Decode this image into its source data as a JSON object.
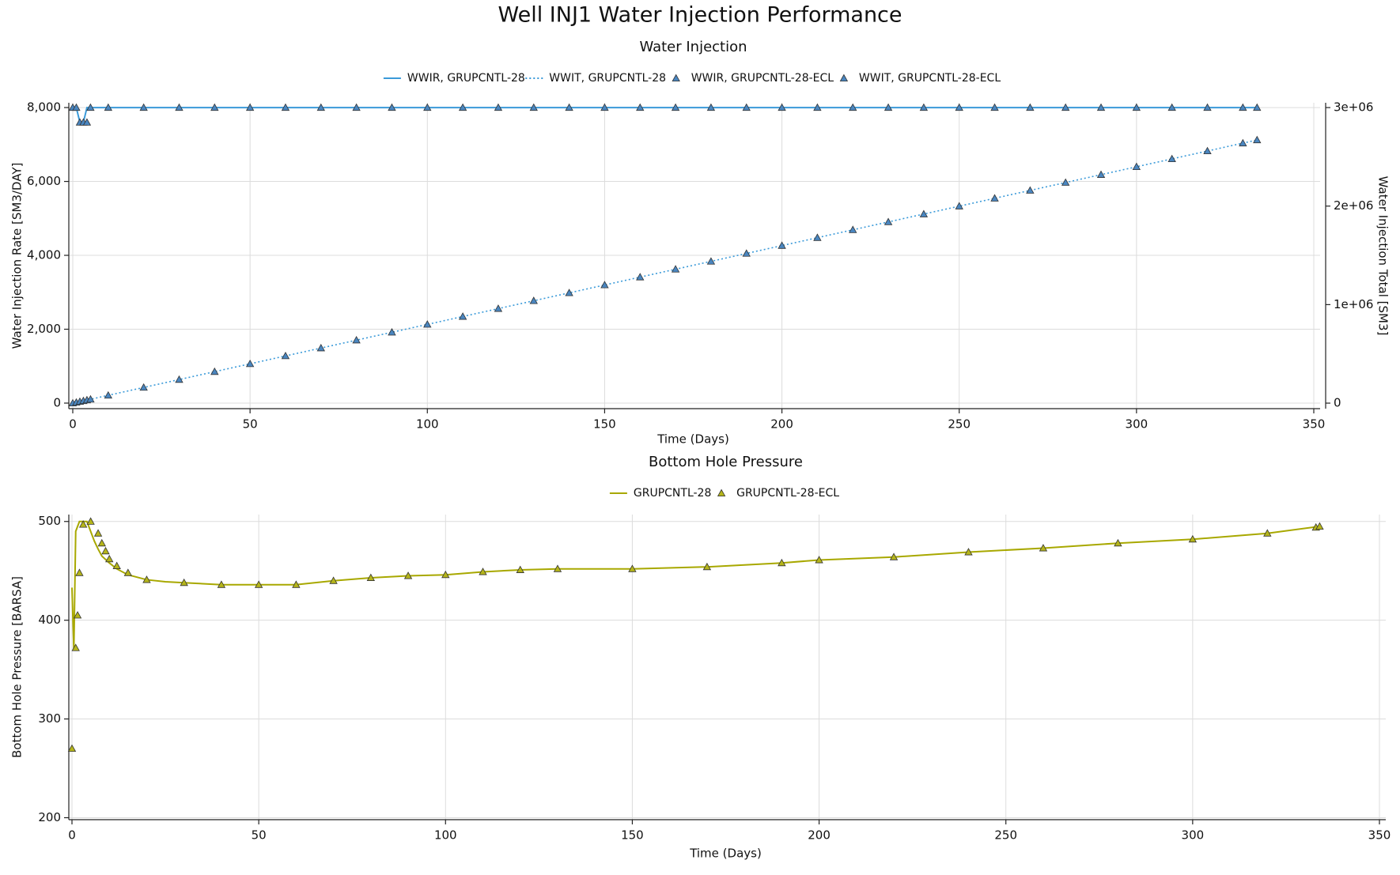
{
  "title": "Well INJ1 Water Injection Performance",
  "chart_data": [
    {
      "type": "line",
      "title": "Water Injection",
      "xlabel": "Time (Days)",
      "ylabel": "Water Injection Rate [SM3/DAY]",
      "y2label": "Water Injection Total [SM3]",
      "legend": "top",
      "grid": true,
      "xlim": [
        0,
        350
      ],
      "xticks": [
        0,
        50,
        100,
        150,
        200,
        250,
        300,
        350
      ],
      "ylim": [
        -150,
        8130
      ],
      "yticks": [
        0,
        {
          "value": 2000,
          "label": "2,000"
        },
        {
          "value": 4000,
          "label": "4,000"
        },
        {
          "value": 6000,
          "label": "6,000"
        },
        {
          "value": 8000,
          "label": "8,000"
        }
      ],
      "y2lim": [
        -56000,
        3049000
      ],
      "y2ticks": [
        0,
        {
          "value": 1000000,
          "label": "1e+06"
        },
        {
          "value": 2000000,
          "label": "2e+06"
        },
        {
          "value": 3000000,
          "label": "3e+06"
        }
      ],
      "x": [
        0,
        1,
        2,
        3,
        4,
        5,
        10,
        20,
        30,
        40,
        50,
        60,
        70,
        80,
        90,
        100,
        110,
        120,
        130,
        140,
        150,
        160,
        170,
        180,
        190,
        200,
        210,
        220,
        230,
        240,
        250,
        260,
        270,
        280,
        290,
        300,
        310,
        320,
        330,
        334
      ],
      "series": [
        {
          "name": "WWIR, GRUPCNTL-28",
          "color": "#3a9ad9",
          "style": "line",
          "values": [
            8000,
            8000,
            7600,
            7600,
            8000,
            8000,
            8000,
            8000,
            8000,
            8000,
            8000,
            8000,
            8000,
            8000,
            8000,
            8000,
            8000,
            8000,
            8000,
            8000,
            8000,
            8000,
            8000,
            8000,
            8000,
            8000,
            8000,
            8000,
            8000,
            8000,
            8000,
            8000,
            8000,
            8000,
            8000,
            8000,
            8000,
            8000,
            8000,
            8000
          ]
        },
        {
          "name": "WWIT, GRUPCNTL-28",
          "color": "#3a9ad9",
          "style": "dotted",
          "axis": "y2",
          "values": [
            0,
            8000,
            16000,
            23600,
            31200,
            39200,
            79200,
            159200,
            239200,
            319200,
            399200,
            479200,
            559200,
            639200,
            719200,
            799200,
            879200,
            959200,
            1039200,
            1119200,
            1199200,
            1279200,
            1359200,
            1439200,
            1519200,
            1599200,
            1679200,
            1759200,
            1839200,
            1919200,
            1999200,
            2079200,
            2159200,
            2239200,
            2319200,
            2399200,
            2479200,
            2559200,
            2639200,
            2671200
          ]
        },
        {
          "name": "WWIR, GRUPCNTL-28-ECL",
          "color": "#4a86c0",
          "style": "triangle",
          "values": [
            8000,
            8000,
            7600,
            7600,
            7600,
            8000,
            8000,
            8000,
            8000,
            8000,
            8000,
            8000,
            8000,
            8000,
            8000,
            8000,
            8000,
            8000,
            8000,
            8000,
            8000,
            8000,
            8000,
            8000,
            8000,
            8000,
            8000,
            8000,
            8000,
            8000,
            8000,
            8000,
            8000,
            8000,
            8000,
            8000,
            8000,
            8000,
            8000,
            8000
          ]
        },
        {
          "name": "WWIT, GRUPCNTL-28-ECL",
          "color": "#4a86c0",
          "style": "triangle",
          "axis": "y2",
          "values": [
            0,
            8000,
            16000,
            23600,
            31200,
            39200,
            79200,
            159200,
            239200,
            319200,
            399200,
            479200,
            559200,
            639200,
            719200,
            799200,
            879200,
            959200,
            1039200,
            1119200,
            1199200,
            1279200,
            1359200,
            1439200,
            1519200,
            1599200,
            1679200,
            1759200,
            1839200,
            1919200,
            1999200,
            2079200,
            2159200,
            2239200,
            2319200,
            2399200,
            2479200,
            2559200,
            2639200,
            2671200
          ]
        }
      ]
    },
    {
      "type": "line",
      "title": "Bottom Hole Pressure",
      "xlabel": "Time (Days)",
      "ylabel": "Bottom Hole Pressure [BARSA]",
      "legend": "top",
      "grid": true,
      "xlim": [
        0,
        350
      ],
      "xticks": [
        0,
        50,
        100,
        150,
        200,
        250,
        300,
        350
      ],
      "ylim": [
        198,
        507
      ],
      "yticks": [
        200,
        300,
        400,
        500
      ],
      "series": [
        {
          "name": "GRUPCNTL-28",
          "color": "#a8a800",
          "style": "line",
          "x": [
            0,
            0.5,
            1,
            2,
            4,
            5,
            6,
            7,
            8,
            10,
            12,
            15,
            20,
            25,
            30,
            40,
            50,
            60,
            70,
            80,
            90,
            100,
            110,
            120,
            130,
            150,
            170,
            190,
            200,
            220,
            240,
            260,
            280,
            300,
            320,
            334
          ],
          "values": [
            433,
            370,
            490,
            500,
            500,
            490,
            480,
            472,
            465,
            458,
            452,
            446,
            441,
            439,
            438,
            436,
            436,
            436,
            440,
            443,
            445,
            446,
            449,
            451,
            452,
            452,
            454,
            458,
            461,
            464,
            469,
            473,
            478,
            482,
            488,
            495
          ]
        },
        {
          "name": "GRUPCNTL-28-ECL",
          "color": "#b5b51a",
          "style": "triangle",
          "x": [
            0,
            1,
            1.5,
            2,
            3,
            5,
            7,
            8,
            9,
            10,
            12,
            15,
            20,
            30,
            40,
            50,
            60,
            70,
            80,
            90,
            100,
            110,
            120,
            130,
            150,
            170,
            190,
            200,
            220,
            240,
            260,
            280,
            300,
            320,
            333,
            334
          ],
          "values": [
            270,
            372,
            405,
            448,
            497,
            500,
            488,
            478,
            470,
            462,
            455,
            448,
            441,
            438,
            436,
            436,
            436,
            440,
            443,
            445,
            446,
            449,
            451,
            452,
            452,
            454,
            458,
            461,
            464,
            469,
            473,
            478,
            482,
            488,
            494,
            495
          ]
        }
      ]
    }
  ]
}
